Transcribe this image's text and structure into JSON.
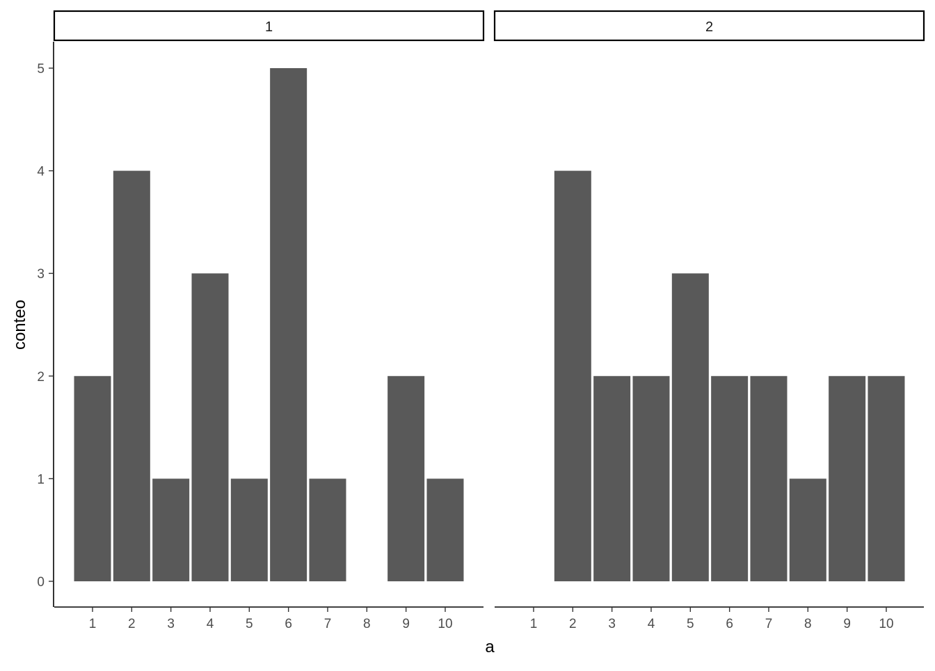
{
  "chart_data": {
    "type": "bar",
    "xlabel": "a",
    "ylabel": "conteo",
    "categories": [
      "1",
      "2",
      "3",
      "4",
      "5",
      "6",
      "7",
      "8",
      "9",
      "10"
    ],
    "ylim": [
      0,
      5
    ],
    "y_ticks": [
      "0",
      "1",
      "2",
      "3",
      "4",
      "5"
    ],
    "grid": false,
    "bar_color": "#595959",
    "facets": [
      {
        "label": "1",
        "values": [
          2,
          4,
          1,
          3,
          1,
          5,
          1,
          0,
          2,
          1
        ]
      },
      {
        "label": "2",
        "values": [
          0,
          4,
          2,
          2,
          3,
          2,
          2,
          1,
          2,
          2
        ]
      }
    ]
  }
}
